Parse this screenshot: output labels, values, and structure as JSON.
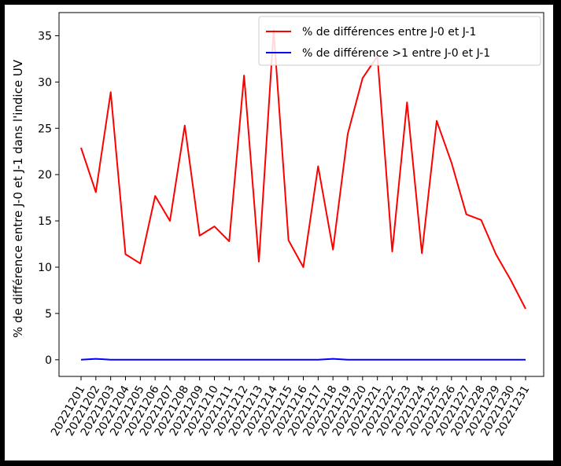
{
  "chart_data": {
    "type": "line",
    "title": "",
    "xlabel": "",
    "ylabel": "% de différence entre J-0 et J-1 dans l'indice UV",
    "categories": [
      "20221201",
      "20221202",
      "20221203",
      "20221204",
      "20221205",
      "20221206",
      "20221207",
      "20221208",
      "20221209",
      "20221210",
      "20221211",
      "20221212",
      "20221213",
      "20221214",
      "20221215",
      "20221216",
      "20221217",
      "20221218",
      "20221219",
      "20221220",
      "20221221",
      "20221222",
      "20221223",
      "20221224",
      "20221225",
      "20221226",
      "20221227",
      "20221228",
      "20221229",
      "20221230",
      "20221231"
    ],
    "yticks": [
      0,
      5,
      10,
      15,
      20,
      25,
      30,
      35
    ],
    "ylim": [
      -1.8,
      37.5
    ],
    "grid": false,
    "legend_position": "top-right",
    "series": [
      {
        "name": "% de différences entre J-0 et J-1",
        "color": "#ff0000",
        "values": [
          22.9,
          18.1,
          28.9,
          11.4,
          10.4,
          17.7,
          15.0,
          25.3,
          13.4,
          14.4,
          12.8,
          30.7,
          10.6,
          35.6,
          12.9,
          10.0,
          20.9,
          11.9,
          24.4,
          30.4,
          32.8,
          11.7,
          27.8,
          11.5,
          25.8,
          21.3,
          15.7,
          15.1,
          11.4,
          8.6,
          5.5
        ]
      },
      {
        "name": "% de différence >1 entre J-0 et J-1",
        "color": "#0000ff",
        "values": [
          0.0,
          0.1,
          0.0,
          0.0,
          0.0,
          0.0,
          0.0,
          0.0,
          0.0,
          0.0,
          0.0,
          0.0,
          0.0,
          0.0,
          0.0,
          0.0,
          0.0,
          0.1,
          0.0,
          0.0,
          0.0,
          0.0,
          0.0,
          0.0,
          0.0,
          0.0,
          0.0,
          0.0,
          0.0,
          0.0,
          0.0
        ]
      }
    ]
  }
}
